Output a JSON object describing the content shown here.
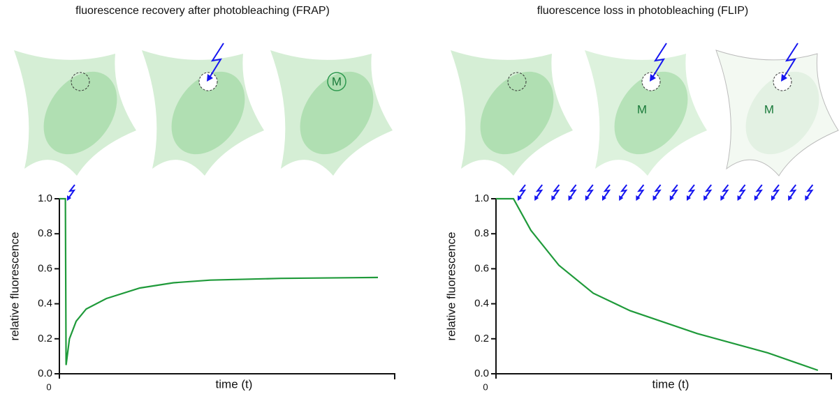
{
  "chart_data": [
    {
      "type": "line",
      "title": "fluorescence recovery after photobleaching (FRAP)",
      "xlabel": "time (t)",
      "ylabel": "relative fluorescence",
      "annotations": [
        "M"
      ],
      "x": [
        0,
        1.8,
        2,
        3,
        5,
        8,
        14,
        24,
        34,
        45,
        66,
        95
      ],
      "values": [
        1.0,
        1.0,
        0.05,
        0.2,
        0.3,
        0.37,
        0.43,
        0.49,
        0.52,
        0.535,
        0.545,
        0.55
      ],
      "color": "#1f9a3a",
      "xlim": [
        0,
        100
      ],
      "xticks": [
        0
      ],
      "ylim": [
        0,
        1
      ],
      "yticks": [
        {
          "value": 0,
          "label": "0.0"
        },
        0.2,
        0.4,
        0.6,
        0.8,
        {
          "value": 1,
          "label": "1.0"
        }
      ]
    },
    {
      "type": "line",
      "title": "fluorescence loss in photobleaching (FLIP)",
      "xlabel": "time (t)",
      "ylabel": "relative fluorescence",
      "annotations": [
        "M",
        "M"
      ],
      "x": [
        0,
        5.2,
        10.4,
        18.75,
        29,
        40,
        60,
        81,
        96
      ],
      "values": [
        1.0,
        1.0,
        0.82,
        0.62,
        0.46,
        0.36,
        0.23,
        0.12,
        0.02
      ],
      "color": "#1f9a3a",
      "xlim": [
        0,
        100
      ],
      "xticks": [
        0
      ],
      "ylim": [
        0,
        1
      ],
      "yticks": [
        {
          "value": 0,
          "label": "0.0"
        },
        0.2,
        0.4,
        0.6,
        0.8,
        {
          "value": 1,
          "label": "1.0"
        }
      ]
    }
  ]
}
